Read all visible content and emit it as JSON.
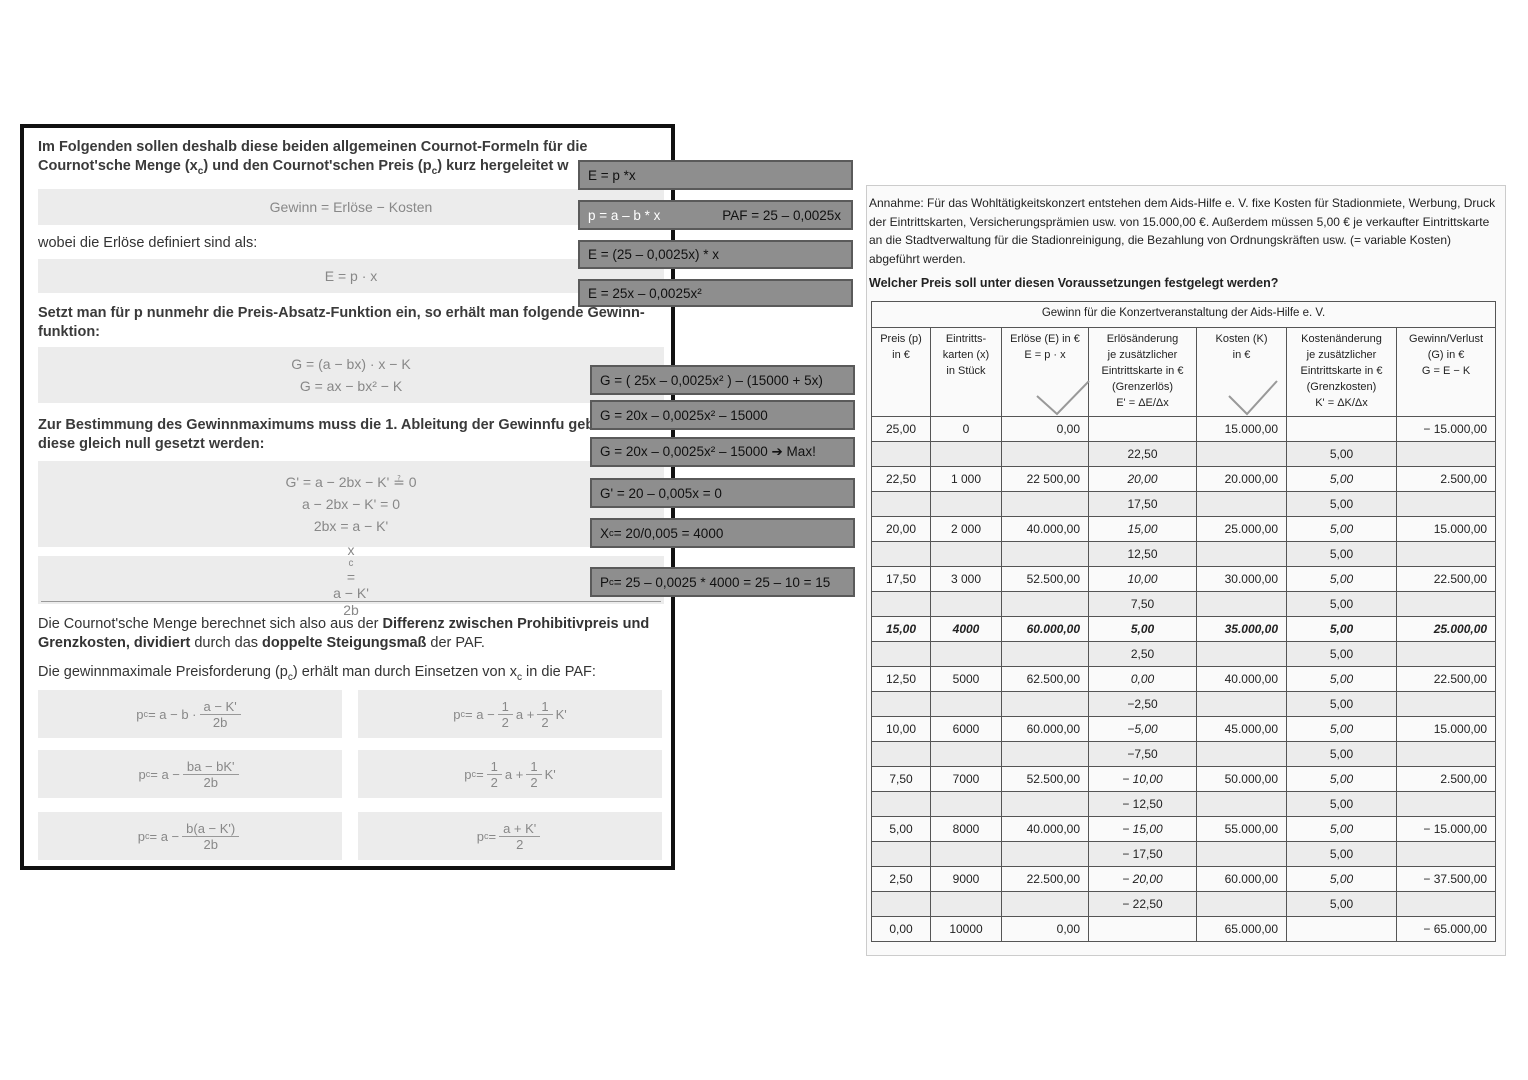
{
  "left": {
    "intro": [
      "Im Folgenden sollen deshalb diese beiden allgemeinen Cournot-Formeln für die Cournot'sche Menge (x",
      {
        "sub": "c"
      },
      ") und den Cournot'schen Preis (p",
      {
        "sub": "c"
      },
      ") kurz hergeleitet w"
    ],
    "formula_profit": [
      "Gewinn = Erlöse − Kosten"
    ],
    "revenue_intro": [
      "wobei die Erlöse definiert sind als:"
    ],
    "formula_revenue": [
      "E = p · x"
    ],
    "paf_intro": [
      "Setzt man für p nunmehr die Preis-Absatz-Funktion ein, so erhält man folgende Gewinn-funktion:"
    ],
    "formula_profit_function": [
      [
        "G = (a − bx) · x − K"
      ],
      [
        "G = ax − bx² − K"
      ]
    ],
    "derivative_intro": [
      "Zur Bestimmung des Gewinnmaximums muss die 1. Ableitung der Gewinnfu gebildet und diese gleich null gesetzt werden:"
    ],
    "formula_derivative": [
      [
        "G' = a − 2bx − K' ≟ 0"
      ],
      [
        "a − 2bx − K' = 0"
      ],
      [
        "2bx = a − K'"
      ]
    ],
    "formula_quantity": [
      "x",
      {
        "sub": "c"
      },
      " = ",
      {
        "num": "a − K'",
        "den": "2b"
      }
    ],
    "quantity_text": [
      "Die Cournot'sche Menge berechnet sich also aus der ",
      {
        "b": "Differenz zwischen Prohibitivpreis und Grenzkosten, dividiert"
      },
      " durch das ",
      {
        "b": "doppelte Steigungsmaß"
      },
      " der PAF."
    ],
    "price_text": [
      "Die gewinnmaximale Preisforderung (p",
      {
        "sub": "c"
      },
      ") erhält man durch Einsetzen von x",
      {
        "sub": "c"
      },
      " in die PAF:"
    ],
    "price_formulas": [
      [
        "p",
        {
          "sub": "c"
        },
        " = a − b · ",
        {
          "num": "a − K'",
          "den": "2b"
        }
      ],
      [
        "p",
        {
          "sub": "c"
        },
        " = a − ",
        {
          "num": "ba − bK'",
          "den": "2b"
        }
      ],
      [
        "p",
        {
          "sub": "c"
        },
        " = a − ",
        {
          "num": "b(a − K')",
          "den": "2b"
        }
      ],
      [
        "p",
        {
          "sub": "c"
        },
        " = a − ",
        {
          "num": "1",
          "den": "2"
        },
        "a + ",
        {
          "num": "1",
          "den": "2"
        },
        "K'"
      ],
      [
        "p",
        {
          "sub": "c"
        },
        " = ",
        {
          "num": "1",
          "den": "2"
        },
        "a + ",
        {
          "num": "1",
          "den": "2"
        },
        "K'"
      ],
      [
        "p",
        {
          "sub": "c"
        },
        " = ",
        {
          "num": "a + K'",
          "den": "2"
        }
      ]
    ]
  },
  "notes": [
    [
      "E = p *x"
    ],
    [
      "p = a – b * x"
    ],
    [
      "PAF = 25 – 0,0025x"
    ],
    [
      "E =  (25 – 0,0025x) * x"
    ],
    [
      "E =  25x – 0,0025x²"
    ],
    [
      "G = ( 25x – 0,0025x² ) – (15000 + 5x)"
    ],
    [
      "G = 20x – 0,0025x² – 15000"
    ],
    [
      "G = 20x – 0,0025x² – 15000 ➔ Max!"
    ],
    [
      "G' = 20 – 0,005x = 0"
    ],
    [
      "X",
      {
        "sub": "c"
      },
      " = 20/0,005 = 4000"
    ],
    [
      "P",
      {
        "sub": "c"
      },
      " = 25 – 0,0025 * 4000 = 25 – 10 = 15"
    ]
  ],
  "right": {
    "assumption": "Annahme: Für das Wohltätigkeitskonzert entstehen dem Aids-Hilfe e. V. fixe Kosten für Stadionmiete, Werbung, Druck der Eintrittskarten, Versicherungsprämien usw. von 15.000,00 €. Außerdem müssen 5,00 € je verkaufter Eintrittskarte an die Stadtverwaltung für die Stadionreinigung, die Bezahlung von Ordnungskräften usw. (= variable Kosten) abgeführt werden.",
    "question": "Welcher Preis soll unter diesen Voraussetzungen festgelegt werden?",
    "table": {
      "title": "Gewinn für die Konzertveranstaltung der Aids-Hilfe e. V.",
      "headers": [
        [
          "Preis (p)",
          "in €"
        ],
        [
          "Eintritts-",
          "karten (x)",
          "in Stück"
        ],
        [
          "Erlöse (E) in €",
          "E = p · x"
        ],
        [
          "Erlösänderung",
          "je zusätzlicher",
          "Eintrittskarte in €",
          "(Grenzerlös)",
          "E' = ΔE/Δx"
        ],
        [
          "Kosten (K)",
          "in €"
        ],
        [
          "Kostenänderung",
          "je zusätzlicher",
          "Eintrittskarte in €",
          "(Grenzkosten)",
          "K' = ΔK/Δx"
        ],
        [
          "Gewinn/Verlust",
          "(G) in €",
          "G = E − K"
        ]
      ],
      "rows": [
        [
          "25,00",
          "0",
          "0,00",
          null,
          "15.000,00",
          null,
          "− 15.000,00"
        ],
        [
          null,
          null,
          null,
          "22,50",
          null,
          "5,00",
          null
        ],
        [
          "22,50",
          "1 000",
          "22 500,00",
          "20,00",
          "20.000,00",
          "5,00",
          "2.500,00"
        ],
        [
          null,
          null,
          null,
          "17,50",
          null,
          "5,00",
          null
        ],
        [
          "20,00",
          "2 000",
          "40.000,00",
          "15,00",
          "25.000,00",
          "5,00",
          "15.000,00"
        ],
        [
          null,
          null,
          null,
          "12,50",
          null,
          "5,00",
          null
        ],
        [
          "17,50",
          "3 000",
          "52.500,00",
          "10,00",
          "30.000,00",
          "5,00",
          "22.500,00"
        ],
        [
          null,
          null,
          null,
          "7,50",
          null,
          "5,00",
          null
        ],
        [
          "15,00",
          "4000",
          "60.000,00",
          "5,00",
          "35.000,00",
          "5,00",
          "25.000,00"
        ],
        [
          null,
          null,
          null,
          "2,50",
          null,
          "5,00",
          null
        ],
        [
          "12,50",
          "5000",
          "62.500,00",
          "0,00",
          "40.000,00",
          "5,00",
          "22.500,00"
        ],
        [
          null,
          null,
          null,
          "−2,50",
          null,
          "5,00",
          null
        ],
        [
          "10,00",
          "6000",
          "60.000,00",
          "−5,00",
          "45.000,00",
          "5,00",
          "15.000,00"
        ],
        [
          null,
          null,
          null,
          "−7,50",
          null,
          "5,00",
          null
        ],
        [
          "7,50",
          "7000",
          "52.500,00",
          "− 10,00",
          "50.000,00",
          "5,00",
          "2.500,00"
        ],
        [
          null,
          null,
          null,
          "− 12,50",
          null,
          "5,00",
          null
        ],
        [
          "5,00",
          "8000",
          "40.000,00",
          "− 15,00",
          "55.000,00",
          "5,00",
          "− 15.000,00"
        ],
        [
          null,
          null,
          null,
          "− 17,50",
          null,
          "5,00",
          null
        ],
        [
          "2,50",
          "9000",
          "22.500,00",
          "− 20,00",
          "60.000,00",
          "5,00",
          "− 37.500,00"
        ],
        [
          null,
          null,
          null,
          "− 22,50",
          null,
          "5,00",
          null
        ],
        [
          "0,00",
          "10000",
          "0,00",
          null,
          "65.000,00",
          null,
          "− 65.000,00"
        ]
      ]
    }
  }
}
